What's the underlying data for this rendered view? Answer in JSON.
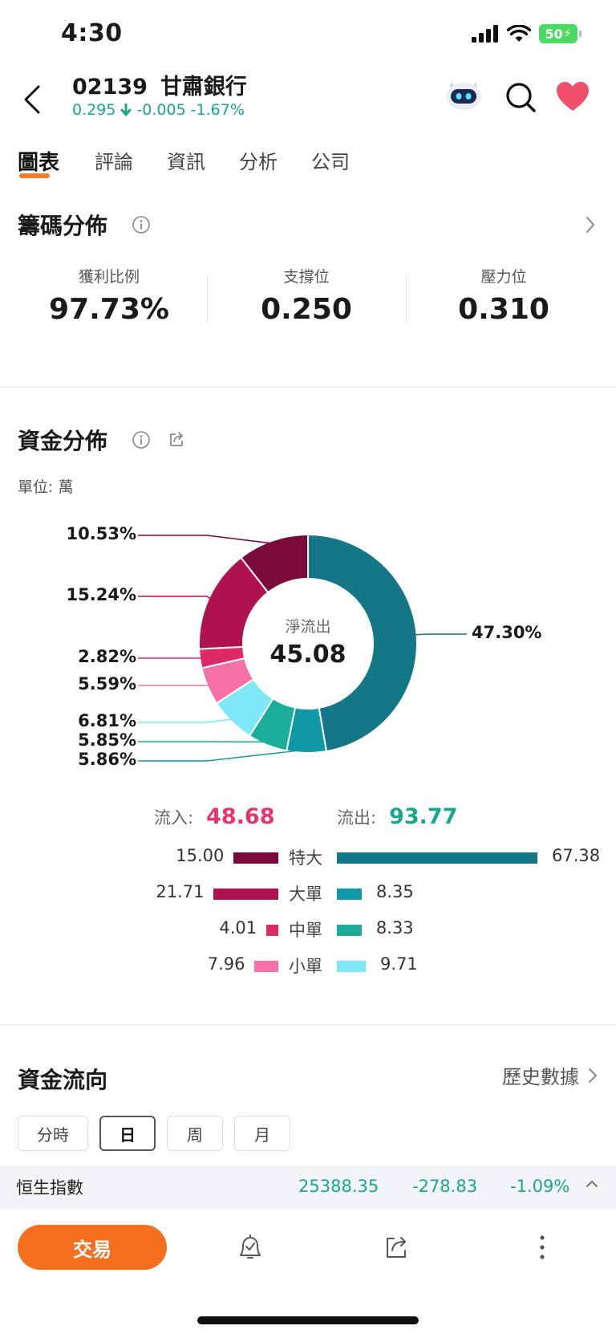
{
  "status_bar": {
    "time": "4:30",
    "battery": "50"
  },
  "header": {
    "stock_code": "02139",
    "stock_name": "甘肅銀行",
    "price": "0.295",
    "change": "-0.005",
    "change_pct": "-1.67%",
    "quote_color": "#17a78f"
  },
  "tabs": [
    {
      "label": "圖表",
      "active": true
    },
    {
      "label": "評論"
    },
    {
      "label": "資訊"
    },
    {
      "label": "分析"
    },
    {
      "label": "公司"
    }
  ],
  "chip_distribution": {
    "title": "籌碼分佈",
    "stats": [
      {
        "label": "獲利比例",
        "value": "97.73%"
      },
      {
        "label": "支撐位",
        "value": "0.250"
      },
      {
        "label": "壓力位",
        "value": "0.310"
      }
    ]
  },
  "capital_distribution": {
    "title": "資金分佈",
    "unit": "單位: 萬",
    "center_label": "淨流出",
    "center_value": "45.08",
    "inflow_label": "流入:",
    "inflow_value": "48.68",
    "outflow_label": "流出:",
    "outflow_value": "93.77",
    "inflow_color": "#e8336d",
    "outflow_color": "#17a78f",
    "rows": [
      {
        "label": "特大",
        "in": "15.00",
        "out": "67.38",
        "in_color": "#7a0a3c",
        "out_color": "#137787"
      },
      {
        "label": "大單",
        "in": "21.71",
        "out": "8.35",
        "in_color": "#b0124f",
        "out_color": "#1198a6"
      },
      {
        "label": "中單",
        "in": "4.01",
        "out": "8.33",
        "in_color": "#dd2a66",
        "out_color": "#1aae9a"
      },
      {
        "label": "小單",
        "in": "7.96",
        "out": "9.71",
        "in_color": "#f870a8",
        "out_color": "#7ee7f8"
      }
    ]
  },
  "chart_data": {
    "type": "pie",
    "categories": [
      "特大流出",
      "大單流出",
      "中單流出",
      "小單流出",
      "小單流入",
      "中單流入",
      "大單流入",
      "特大流入"
    ],
    "values": [
      47.3,
      5.86,
      5.85,
      6.81,
      5.59,
      2.82,
      15.24,
      10.53
    ],
    "labels": [
      "47.30%",
      "5.86%",
      "5.85%",
      "6.81%",
      "5.59%",
      "2.82%",
      "15.24%",
      "10.53%"
    ],
    "colors": [
      "#137787",
      "#1198a6",
      "#1aae9a",
      "#7ee7f8",
      "#f870a8",
      "#dd2a66",
      "#b0124f",
      "#7a0a3c"
    ]
  },
  "capital_flow": {
    "title": "資金流向",
    "history_label": "歷史數據",
    "periods": [
      {
        "label": "分時"
      },
      {
        "label": "日",
        "active": true
      },
      {
        "label": "周"
      },
      {
        "label": "月"
      }
    ]
  },
  "index_bar": {
    "name": "恒生指數",
    "value": "25388.35",
    "change": "-278.83",
    "change_pct": "-1.09%"
  },
  "bottom_bar": {
    "trade_label": "交易"
  }
}
